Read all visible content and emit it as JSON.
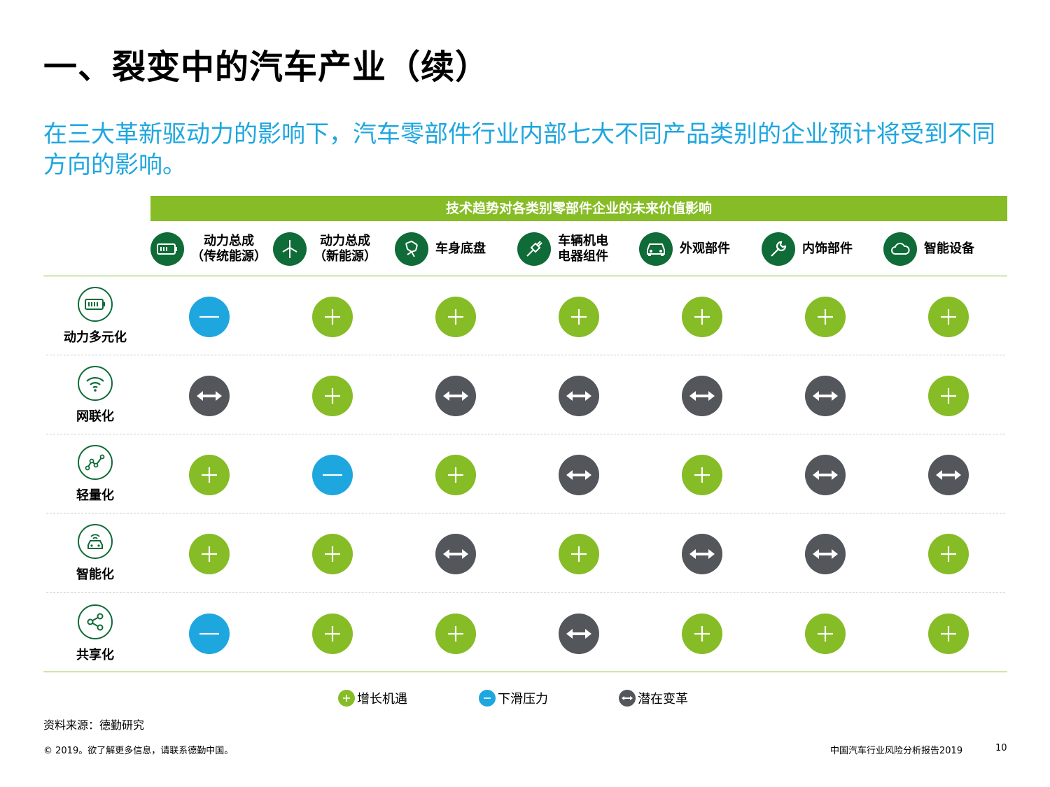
{
  "title": "一、裂变中的汽车产业（续）",
  "subtitle": "在三大革新驱动力的影响下，汽车零部件行业内部七大不同产品类别的企业预计将受到不同方向的影响。",
  "banner": "技术趋势对各类别零部件企业的未来价值影响",
  "categories": [
    {
      "label": "动力总成\n（传统能源）",
      "icon": "battery-icon"
    },
    {
      "label": "动力总成\n（新能源）",
      "icon": "wind-turbine-icon"
    },
    {
      "label": "车身底盘",
      "icon": "chassis-icon"
    },
    {
      "label": "车辆机电\n电器组件",
      "icon": "plug-icon"
    },
    {
      "label": "外观部件",
      "icon": "car-icon"
    },
    {
      "label": "内饰部件",
      "icon": "wrench-icon"
    },
    {
      "label": "智能设备",
      "icon": "cloud-icon"
    }
  ],
  "trends": [
    {
      "label": "动力多元化",
      "icon": "battery-icon",
      "impacts": [
        "minus",
        "plus",
        "plus",
        "plus",
        "plus",
        "plus",
        "plus"
      ]
    },
    {
      "label": "网联化",
      "icon": "wifi-icon",
      "impacts": [
        "arrow",
        "plus",
        "arrow",
        "arrow",
        "arrow",
        "arrow",
        "plus"
      ]
    },
    {
      "label": "轻量化",
      "icon": "graph-line-icon",
      "impacts": [
        "plus",
        "minus",
        "plus",
        "arrow",
        "plus",
        "arrow",
        "arrow"
      ]
    },
    {
      "label": "智能化",
      "icon": "autonomous-car-icon",
      "impacts": [
        "plus",
        "plus",
        "arrow",
        "plus",
        "arrow",
        "arrow",
        "plus"
      ]
    },
    {
      "label": "共享化",
      "icon": "share-icon",
      "impacts": [
        "minus",
        "plus",
        "plus",
        "arrow",
        "plus",
        "plus",
        "plus"
      ]
    }
  ],
  "legend": {
    "plus": "增长机遇",
    "minus": "下滑压力",
    "arrow": "潜在变革"
  },
  "colors": {
    "plus": "#86bc25",
    "minus": "#1ea6df",
    "arrow": "#53565a",
    "dark_green": "#0f6b37"
  },
  "source": "资料来源：德勤研究",
  "footer_left": "© 2019。欲了解更多信息，请联系德勤中国。",
  "footer_right": "中国汽车行业风险分析报告2019",
  "page_number": "10"
}
